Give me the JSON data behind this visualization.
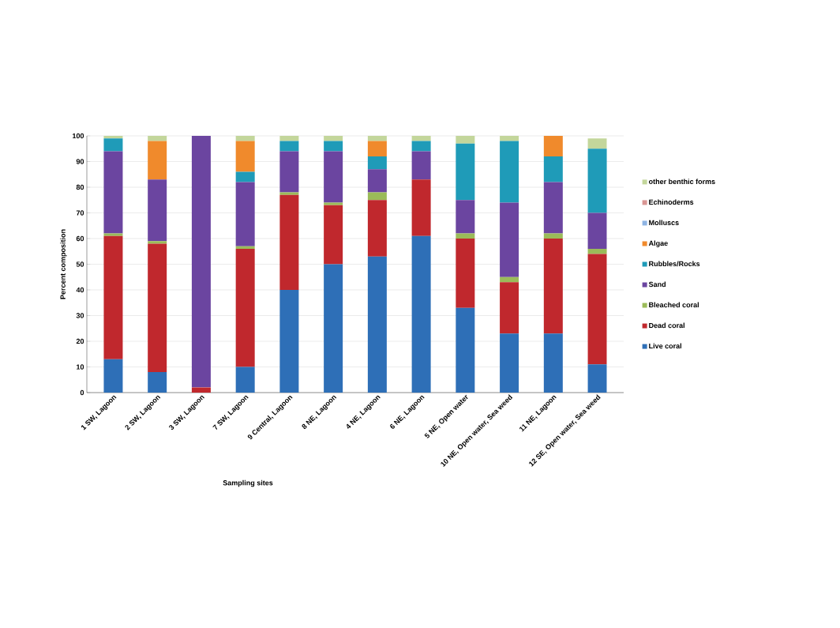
{
  "chart_data": {
    "type": "bar",
    "stacked": true,
    "xlabel": "Sampling sites",
    "ylabel": "Percent composition",
    "categories": [
      "1 SW, Lagoon",
      "2 SW, Lagoon",
      "3 SW, Lagoon",
      "7 SW, Lagoon",
      "9 Central, Lagoon",
      "8 NE, Lagoon",
      "4 NE, Lagoon",
      "6 NE, Lagoon",
      "5 NE, Open water",
      "10 NE, Open water, Sea weed",
      "11 NE, Lagoon",
      "12 SE, Open water, Sea weed"
    ],
    "series": [
      {
        "name": "Live coral",
        "color": "#2e6fb7",
        "values": [
          13,
          8,
          0,
          10,
          40,
          50,
          53,
          61,
          33,
          23,
          23,
          11
        ]
      },
      {
        "name": "Dead coral",
        "color": "#c0282d",
        "values": [
          48,
          50,
          2,
          46,
          37,
          23,
          22,
          22,
          27,
          20,
          37,
          43
        ]
      },
      {
        "name": "Bleached coral",
        "color": "#9bbb59",
        "values": [
          1,
          1,
          0,
          1,
          1,
          1,
          3,
          0,
          2,
          2,
          2,
          2
        ]
      },
      {
        "name": "Sand",
        "color": "#6b45a0",
        "values": [
          32,
          24,
          98,
          25,
          16,
          20,
          9,
          11,
          13,
          29,
          20,
          14
        ]
      },
      {
        "name": "Rubbles/Rocks",
        "color": "#1f9bb8",
        "values": [
          5,
          0,
          0,
          4,
          4,
          4,
          5,
          4,
          22,
          24,
          10,
          25
        ]
      },
      {
        "name": "Algae",
        "color": "#f08a2c",
        "values": [
          0,
          15,
          0,
          12,
          0,
          0,
          6,
          0,
          0,
          0,
          8,
          0
        ]
      },
      {
        "name": "Molluscs",
        "color": "#8eb4e3",
        "values": [
          0,
          0,
          0,
          0,
          0,
          0,
          0,
          0,
          0,
          0,
          0,
          0
        ]
      },
      {
        "name": "Echinoderms",
        "color": "#d99694",
        "values": [
          0,
          0,
          0,
          0,
          0,
          0,
          0,
          0,
          0,
          0,
          0,
          0
        ]
      },
      {
        "name": "other benthic forms",
        "color": "#c3d69b",
        "values": [
          1,
          2,
          0,
          2,
          2,
          2,
          2,
          2,
          3,
          2,
          0,
          4
        ]
      }
    ],
    "ylim": [
      0,
      100
    ],
    "yticks": [
      0,
      10,
      20,
      30,
      40,
      50,
      60,
      70,
      80,
      90,
      100
    ],
    "grid": "y",
    "legend": "right"
  }
}
